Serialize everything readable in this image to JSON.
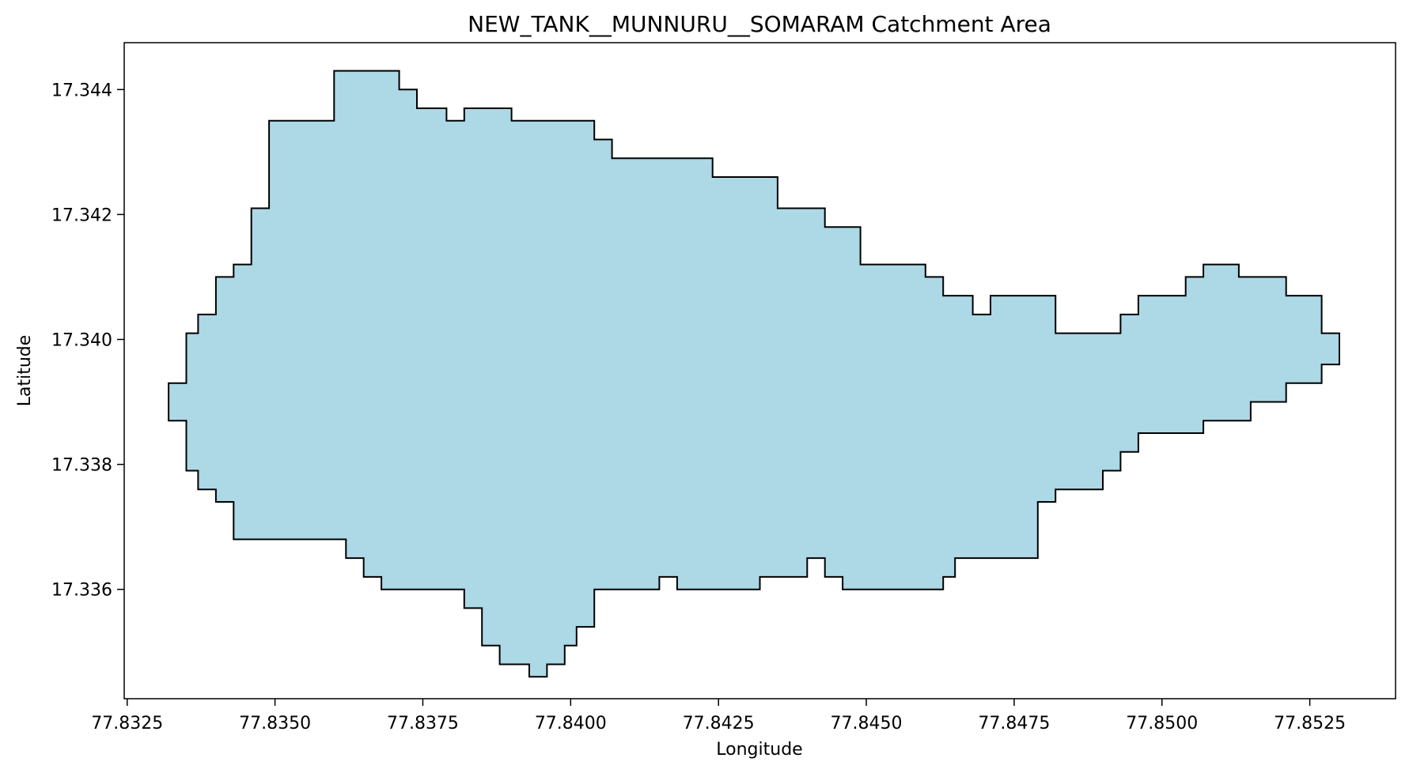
{
  "chart_data": {
    "type": "area",
    "title": "NEW_TANK__MUNNURU__SOMARAM Catchment Area",
    "xlabel": "Longitude",
    "ylabel": "Latitude",
    "xlim": [
      77.83245,
      77.85395
    ],
    "ylim": [
      17.33425,
      17.34475
    ],
    "x_ticks": [
      77.8325,
      77.835,
      77.8375,
      77.84,
      77.8425,
      77.845,
      77.8475,
      77.85,
      77.8525
    ],
    "x_tick_labels": [
      "77.8325",
      "77.8350",
      "77.8375",
      "77.8400",
      "77.8425",
      "77.8450",
      "77.8475",
      "77.8500",
      "77.8525"
    ],
    "y_ticks": [
      17.336,
      17.338,
      17.34,
      17.342,
      17.344
    ],
    "y_tick_labels": [
      "17.336",
      "17.338",
      "17.340",
      "17.342",
      "17.344"
    ],
    "grid": false,
    "legend": false,
    "fill_color": "#add8e6",
    "edge_color": "#000000",
    "polygon": [
      [
        77.836,
        17.3443
      ],
      [
        77.8371,
        17.3443
      ],
      [
        77.8371,
        17.344
      ],
      [
        77.8374,
        17.344
      ],
      [
        77.8374,
        17.3437
      ],
      [
        77.8379,
        17.3437
      ],
      [
        77.8379,
        17.3435
      ],
      [
        77.8382,
        17.3435
      ],
      [
        77.8382,
        17.3437
      ],
      [
        77.839,
        17.3437
      ],
      [
        77.839,
        17.3435
      ],
      [
        77.8404,
        17.3435
      ],
      [
        77.8404,
        17.3432
      ],
      [
        77.8407,
        17.3432
      ],
      [
        77.8407,
        17.3429
      ],
      [
        77.8424,
        17.3429
      ],
      [
        77.8424,
        17.3426
      ],
      [
        77.8435,
        17.3426
      ],
      [
        77.8435,
        17.3421
      ],
      [
        77.8443,
        17.3421
      ],
      [
        77.8443,
        17.3418
      ],
      [
        77.8449,
        17.3418
      ],
      [
        77.8449,
        17.3412
      ],
      [
        77.846,
        17.3412
      ],
      [
        77.846,
        17.341
      ],
      [
        77.8463,
        17.341
      ],
      [
        77.8463,
        17.3407
      ],
      [
        77.8468,
        17.3407
      ],
      [
        77.8468,
        17.3404
      ],
      [
        77.8471,
        17.3404
      ],
      [
        77.8471,
        17.3407
      ],
      [
        77.8482,
        17.3407
      ],
      [
        77.8482,
        17.3401
      ],
      [
        77.8493,
        17.3401
      ],
      [
        77.8493,
        17.3404
      ],
      [
        77.8496,
        17.3404
      ],
      [
        77.8496,
        17.3407
      ],
      [
        77.8504,
        17.3407
      ],
      [
        77.8504,
        17.341
      ],
      [
        77.8507,
        17.341
      ],
      [
        77.8507,
        17.3412
      ],
      [
        77.8513,
        17.3412
      ],
      [
        77.8513,
        17.341
      ],
      [
        77.8521,
        17.341
      ],
      [
        77.8521,
        17.3407
      ],
      [
        77.8527,
        17.3407
      ],
      [
        77.8527,
        17.3401
      ],
      [
        77.853,
        17.3401
      ],
      [
        77.853,
        17.3396
      ],
      [
        77.8527,
        17.3396
      ],
      [
        77.8527,
        17.3393
      ],
      [
        77.8521,
        17.3393
      ],
      [
        77.8521,
        17.339
      ],
      [
        77.8515,
        17.339
      ],
      [
        77.8515,
        17.3387
      ],
      [
        77.8507,
        17.3387
      ],
      [
        77.8507,
        17.3385
      ],
      [
        77.8496,
        17.3385
      ],
      [
        77.8496,
        17.3382
      ],
      [
        77.8493,
        17.3382
      ],
      [
        77.8493,
        17.3379
      ],
      [
        77.849,
        17.3379
      ],
      [
        77.849,
        17.3376
      ],
      [
        77.8482,
        17.3376
      ],
      [
        77.8482,
        17.3374
      ],
      [
        77.8479,
        17.3374
      ],
      [
        77.8479,
        17.3365
      ],
      [
        77.8465,
        17.3365
      ],
      [
        77.8465,
        17.3362
      ],
      [
        77.8463,
        17.3362
      ],
      [
        77.8463,
        17.336
      ],
      [
        77.8446,
        17.336
      ],
      [
        77.8446,
        17.3362
      ],
      [
        77.8443,
        17.3362
      ],
      [
        77.8443,
        17.3365
      ],
      [
        77.844,
        17.3365
      ],
      [
        77.844,
        17.3362
      ],
      [
        77.8432,
        17.3362
      ],
      [
        77.8432,
        17.336
      ],
      [
        77.8418,
        17.336
      ],
      [
        77.8418,
        17.3362
      ],
      [
        77.8415,
        17.3362
      ],
      [
        77.8415,
        17.336
      ],
      [
        77.8404,
        17.336
      ],
      [
        77.8404,
        17.3354
      ],
      [
        77.8401,
        17.3354
      ],
      [
        77.8401,
        17.3351
      ],
      [
        77.8399,
        17.3351
      ],
      [
        77.8399,
        17.3348
      ],
      [
        77.8396,
        17.3348
      ],
      [
        77.8396,
        17.3346
      ],
      [
        77.8393,
        17.3346
      ],
      [
        77.8393,
        17.3348
      ],
      [
        77.8388,
        17.3348
      ],
      [
        77.8388,
        17.3351
      ],
      [
        77.8385,
        17.3351
      ],
      [
        77.8385,
        17.3357
      ],
      [
        77.8382,
        17.3357
      ],
      [
        77.8382,
        17.336
      ],
      [
        77.8368,
        17.336
      ],
      [
        77.8368,
        17.3362
      ],
      [
        77.8365,
        17.3362
      ],
      [
        77.8365,
        17.3365
      ],
      [
        77.8362,
        17.3365
      ],
      [
        77.8362,
        17.3368
      ],
      [
        77.8343,
        17.3368
      ],
      [
        77.8343,
        17.3374
      ],
      [
        77.834,
        17.3374
      ],
      [
        77.834,
        17.3376
      ],
      [
        77.8337,
        17.3376
      ],
      [
        77.8337,
        17.3379
      ],
      [
        77.8335,
        17.3379
      ],
      [
        77.8335,
        17.3387
      ],
      [
        77.8332,
        17.3387
      ],
      [
        77.8332,
        17.3393
      ],
      [
        77.8335,
        17.3393
      ],
      [
        77.8335,
        17.3401
      ],
      [
        77.8337,
        17.3401
      ],
      [
        77.8337,
        17.3404
      ],
      [
        77.834,
        17.3404
      ],
      [
        77.834,
        17.341
      ],
      [
        77.8343,
        17.341
      ],
      [
        77.8343,
        17.3412
      ],
      [
        77.8346,
        17.3412
      ],
      [
        77.8346,
        17.3421
      ],
      [
        77.8349,
        17.3421
      ],
      [
        77.8349,
        17.3435
      ],
      [
        77.836,
        17.3435
      ]
    ]
  }
}
